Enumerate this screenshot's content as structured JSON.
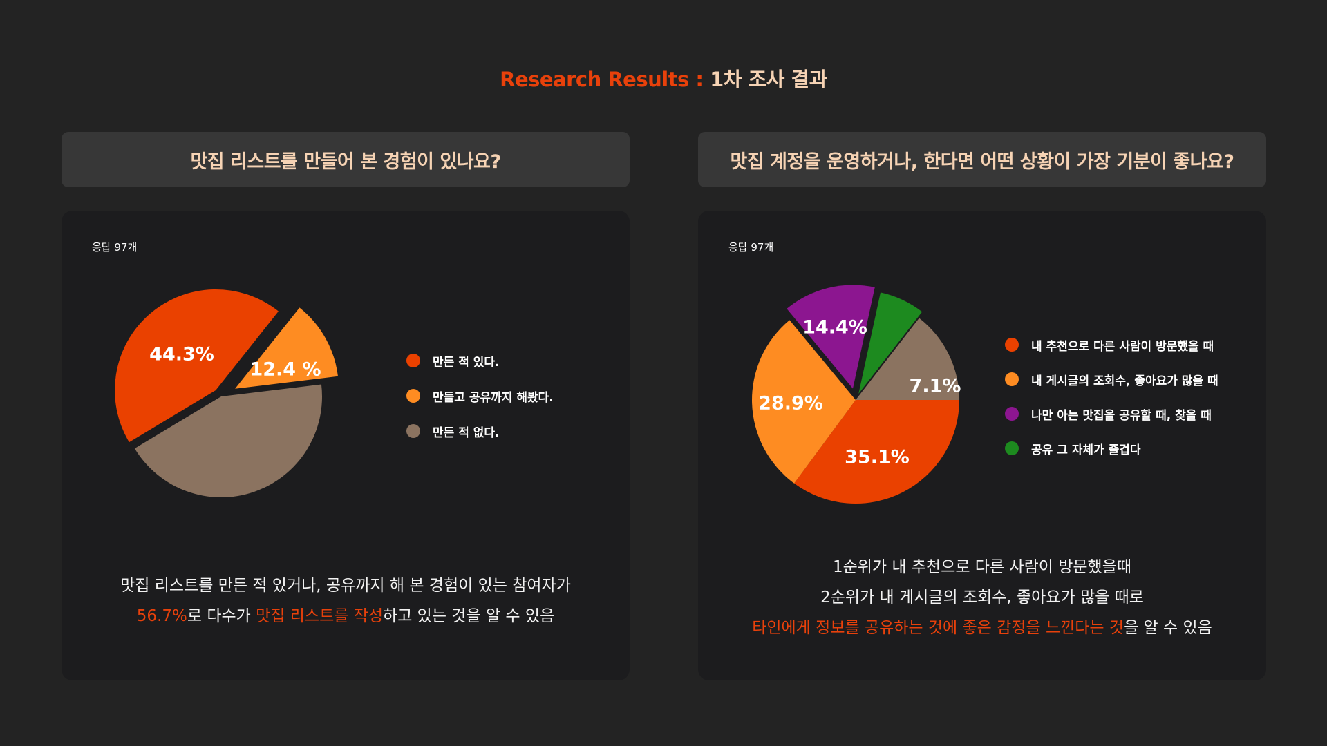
{
  "header": {
    "accent": "Research Results : ",
    "main": "1차 조사 결과"
  },
  "left": {
    "question": "맛집 리스트를 만들어 본 경험이 있나요?",
    "response_count": "응답 97개",
    "summary": {
      "line1": "맛집 리스트를 만든 적 있거나, 공유까지 해 본 경험이 있는 참여자가",
      "line2_hl1": "56.7%",
      "line2_text1": "로 다수가 ",
      "line2_hl2": "맛집 리스트를 작성",
      "line2_text2": "하고 있는 것을 알 수 있음"
    }
  },
  "right": {
    "question": "맛집 계정을 운영하거나, 한다면 어떤 상황이 가장 기분이 좋나요?",
    "response_count": "응답 97개",
    "summary": {
      "line1": "1순위가 내 추천으로 다른 사람이 방문했을때",
      "line2": "2순위가 내 게시글의 조회수, 좋아요가 많을 때로",
      "line3_hl": "타인에게 정보를 공유하는 것에 좋은 감정을 느낀다는 것",
      "line3_text": "을 알 수 있음"
    }
  },
  "colors": {
    "accent": "#e8410b",
    "title": "#f6d3b4",
    "red_orange": "#ea4100",
    "orange": "#fe8c22",
    "taupe": "#8b7360",
    "purple": "#8c1690",
    "green": "#1d8a1f"
  },
  "chart_data": [
    {
      "type": "pie",
      "slices": [
        {
          "label": "만든 적 있다.",
          "value": 44.3,
          "display": "44.3%",
          "color": "#ea4100"
        },
        {
          "label": "만들고 공유까지 해봤다.",
          "value": 12.4,
          "display": "12.4 %",
          "color": "#fe8c22"
        },
        {
          "label": "만든 적 없다.",
          "value": 43.3,
          "display": "",
          "color": "#8b7360"
        }
      ]
    },
    {
      "type": "pie",
      "slices": [
        {
          "label": "내 추천으로 다른 사람이 방문했을 때",
          "value": 35.1,
          "display": "35.1%",
          "color": "#ea4100"
        },
        {
          "label": "내 게시글의 조회수, 좋아요가 많을 때",
          "value": 28.9,
          "display": "28.9%",
          "color": "#fe8c22"
        },
        {
          "label": "나만 아는 맛집을 공유할 때, 찾을 때",
          "value": 14.4,
          "display": "14.4%",
          "color": "#8c1690"
        },
        {
          "label": "공유 그 자체가 즐겁다",
          "value": 7.1,
          "display": "7.1%",
          "color": "#1d8a1f"
        },
        {
          "label": "",
          "value": 14.5,
          "display": "",
          "color": "#8b7360"
        }
      ]
    }
  ]
}
